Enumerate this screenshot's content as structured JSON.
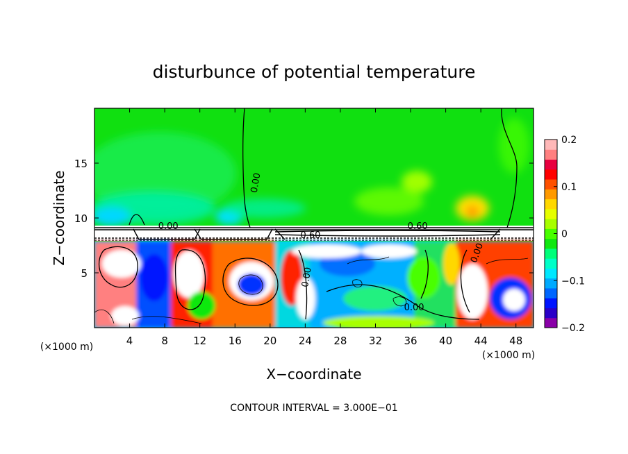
{
  "chart_data": {
    "type": "heatmap",
    "title": "disturbunce of potential temperature",
    "xlabel": "X−coordinate",
    "ylabel": "Z−coordinate",
    "x_unit_left": "(×1000 m)",
    "x_unit_right": "(×1000 m)",
    "footer": "CONTOUR INTERVAL = 3.000E−01",
    "xlim": [
      0,
      50
    ],
    "ylim": [
      0,
      20
    ],
    "x_ticks": [
      4,
      8,
      12,
      16,
      20,
      24,
      28,
      32,
      36,
      40,
      44,
      48
    ],
    "x_tick_labels": [
      "4",
      "8",
      "12",
      "16",
      "20",
      "24",
      "28",
      "32",
      "36",
      "40",
      "44",
      "48"
    ],
    "y_ticks": [
      5,
      10,
      15
    ],
    "y_tick_labels": [
      "5",
      "10",
      "15"
    ],
    "colorbar": {
      "range": [
        -0.2,
        0.2
      ],
      "ticks": [
        0.2,
        0.1,
        0,
        -0.1,
        -0.2
      ],
      "tick_labels": [
        "0.2",
        "0.1",
        "0",
        "−0.1",
        "−0.2"
      ],
      "colors": [
        "#8a00a8",
        "#2a00c8",
        "#0014ff",
        "#0066ff",
        "#00aaff",
        "#00e8ff",
        "#00ffc8",
        "#00ff7a",
        "#10e810",
        "#48ff00",
        "#a8ff00",
        "#e6ff00",
        "#ffd800",
        "#ff9a00",
        "#ff5000",
        "#ff0000",
        "#e80040",
        "#ff8080",
        "#ffb8b8"
      ]
    },
    "contour_labels": [
      {
        "text": "0.00",
        "x": 18.4,
        "z": 13.2,
        "rotate": -80
      },
      {
        "text": "0.00",
        "x": 8.4,
        "z": 9.2,
        "rotate": 0
      },
      {
        "text": "0.60",
        "x": 36.8,
        "z": 9.2,
        "rotate": 0
      },
      {
        "text": "0.60",
        "x": 24.6,
        "z": 8.4,
        "rotate": 0
      },
      {
        "text": "0.00",
        "x": 24.2,
        "z": 4.6,
        "rotate": -80
      },
      {
        "text": "0.00",
        "x": 36.4,
        "z": 1.8,
        "rotate": 0
      },
      {
        "text": "0.00",
        "x": 43.6,
        "z": 6.8,
        "rotate": -70
      }
    ]
  }
}
